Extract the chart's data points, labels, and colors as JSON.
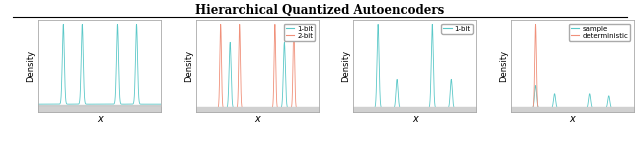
{
  "title": "Hierarchical Quantized Autoencoders",
  "title_fontsize": 8.5,
  "cyan_color": "#5BC8C8",
  "salmon_color": "#F0907A",
  "panel1": {
    "peaks_cyan": [
      -2.5,
      -1.2,
      1.2,
      2.5
    ],
    "sigma": 0.07
  },
  "panel2": {
    "peaks_cyan": [
      -1.85,
      1.85
    ],
    "peaks_salmon": [
      -2.5,
      -1.2,
      1.2,
      2.5
    ],
    "sigma_cyan": 0.07,
    "sigma_salmon": 0.055,
    "legend": [
      "1-bit",
      "2-bit"
    ]
  },
  "panel3": {
    "peaks_tall": [
      -2.5,
      1.2
    ],
    "peaks_short": [
      -1.2,
      2.5
    ],
    "scale_tall": 1.6,
    "scale_short": 0.55,
    "sigma": 0.07,
    "legend": [
      "1-bit"
    ]
  },
  "panel4": {
    "peaks_cyan": [
      -2.5,
      -1.2,
      1.2,
      2.5
    ],
    "scales_cyan": [
      0.55,
      0.35,
      0.35,
      0.3
    ],
    "peak_salmon": -2.5,
    "scale_salmon": 1.6,
    "sigma_cyan": 0.07,
    "sigma_salmon": 0.055,
    "legend": [
      "sample",
      "deterministic"
    ]
  },
  "xlabel": "x",
  "ylabel": "Density",
  "figsize": [
    6.4,
    1.44
  ],
  "dpi": 100
}
